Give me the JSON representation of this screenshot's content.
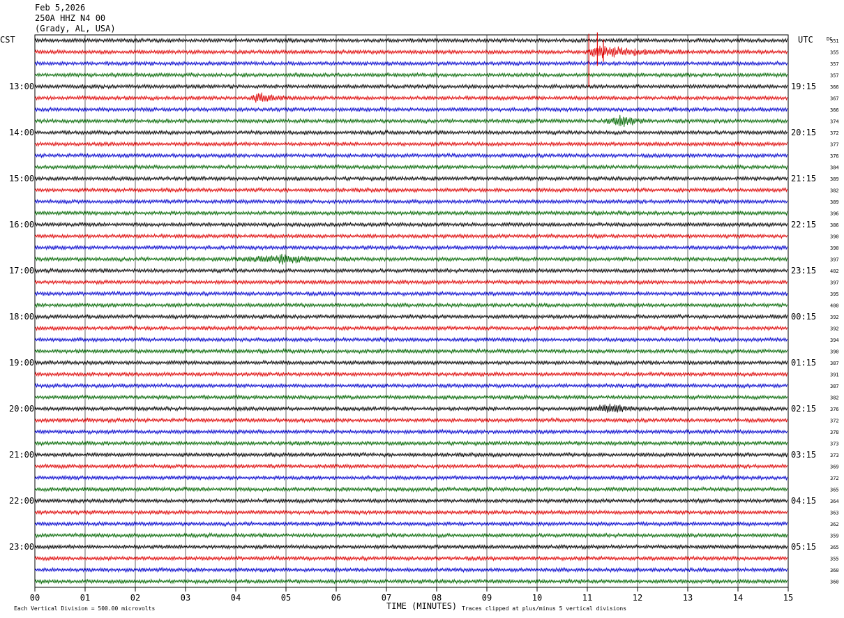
{
  "header": {
    "date": "Feb 5,2026",
    "station": "250A HHZ N4 00",
    "location": "(Grady, AL, USA)"
  },
  "chart_data": {
    "type": "line",
    "plot_kind": "helicorder",
    "left_timezone": "CST",
    "right_timezone": "UTC",
    "dc_label": "DC",
    "xlabel": "TIME (MINUTES)",
    "xlim": [
      0,
      15
    ],
    "x_ticks": [
      "00",
      "01",
      "02",
      "03",
      "04",
      "05",
      "06",
      "07",
      "08",
      "09",
      "10",
      "11",
      "12",
      "13",
      "14",
      "15"
    ],
    "trace_colors": [
      "#000000",
      "#dd0000",
      "#0000cc",
      "#006600"
    ],
    "row_count": 48,
    "left_hour_labels": [
      "13:00",
      "14:00",
      "15:00",
      "16:00",
      "17:00",
      "18:00",
      "19:00",
      "20:00",
      "21:00",
      "22:00",
      "23:00"
    ],
    "right_hour_labels": [
      "19:15",
      "20:15",
      "21:15",
      "22:15",
      "23:15",
      "00:15",
      "01:15",
      "02:15",
      "03:15",
      "04:15",
      "05:15"
    ],
    "first_labeled_row": 4,
    "dc_offsets": [
      351,
      355,
      357,
      357,
      366,
      367,
      366,
      374,
      372,
      377,
      376,
      384,
      389,
      382,
      389,
      396,
      386,
      390,
      390,
      397,
      402,
      397,
      395,
      400,
      392,
      392,
      394,
      390,
      387,
      391,
      387,
      382,
      376,
      372,
      378,
      373,
      373,
      369,
      372,
      365,
      364,
      363,
      362,
      359,
      365,
      355,
      360,
      360
    ],
    "events": [
      {
        "row": 1,
        "minute_start": 10.98,
        "minute_peak": 11.2,
        "minute_end": 13.0,
        "strength": 1.0,
        "clipped": true
      },
      {
        "row": 5,
        "minute_start": 4.25,
        "minute_peak": 4.5,
        "minute_end": 5.2,
        "strength": 0.7
      },
      {
        "row": 7,
        "minute_start": 11.3,
        "minute_peak": 11.75,
        "minute_end": 12.3,
        "strength": 0.9
      },
      {
        "row": 19,
        "minute_start": 4.0,
        "minute_peak": 5.0,
        "minute_end": 6.2,
        "strength": 0.6
      },
      {
        "row": 32,
        "minute_start": 11.0,
        "minute_peak": 11.5,
        "minute_end": 12.4,
        "strength": 0.6
      }
    ],
    "footer_scale": "Each Vertical Division =  500.00 microvolts",
    "footer_clip": "Traces clipped at plus/minus 5 vertical divisions"
  }
}
